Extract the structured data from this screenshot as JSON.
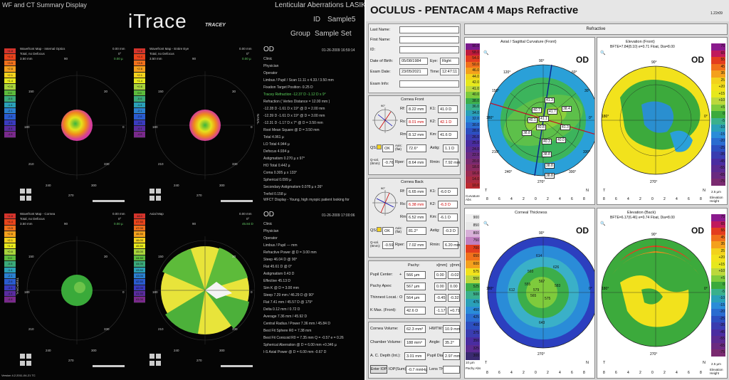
{
  "itrace": {
    "window_title": "WF and CT Summary Display",
    "logo": "iTrace",
    "logo_sub": "TRACEY",
    "header_right": "Lenticular Aberrations LASIK Pro",
    "id_label": "ID",
    "id_value": "Sample5",
    "group_label": "Group",
    "group_value": "Sample Set",
    "version": "Version 4.2.2011-04-21 TC",
    "scale_values": [
      "+4.8",
      "+4.4",
      "+3.5",
      "+2.6",
      "+2.1",
      "+1.4",
      "+0.6",
      "0.0",
      "-0.6",
      "-1.4",
      "-2.1",
      "-2.6",
      "-3.5",
      "-4.4",
      "-4.8"
    ],
    "map_scale_values": [
      "48.0",
      "47.50",
      "47.00",
      "46.50",
      "46.00",
      "45.50",
      "45.00",
      "44.50",
      "44.00",
      "43.50",
      "43.00",
      "42.50",
      "42.00",
      "41.50",
      "41.00"
    ],
    "maps": [
      {
        "title": "Wavefront Map - Internal Optics",
        "sub": "Total, no Defocus",
        "mm": "3.50 mm",
        "dist": "0.00 mm",
        "deg": "0°",
        "val": "0.00 µ",
        "a90": "90",
        "a150": "150",
        "a30": "30",
        "a180": "180",
        "a0": "0",
        "a210": "210",
        "a330": "330",
        "a240": "240",
        "a270": "270",
        "a300": "300"
      },
      {
        "title": "Wavefront Map - Entire Eye",
        "sub": "Total, no Defocus",
        "mm": "3.50 mm",
        "dist": "0.00 mm",
        "deg": "0°",
        "val": "0.00 µ",
        "a90": "90",
        "a150": "150",
        "a30": "30",
        "a180": "180",
        "a0": "0",
        "a210": "210",
        "a330": "330",
        "a240": "240",
        "a270": "270",
        "a300": "300"
      },
      {
        "title": "Wavefront Map - Cornea",
        "sub": "Total, no Defocus",
        "mm": "3.50 mm",
        "dist": "0.00 mm",
        "deg": "0°",
        "val": "0.00 µ",
        "a90": "90",
        "a150": "150",
        "a30": "30",
        "a180": "180",
        "a0": "0",
        "a210": "210",
        "a330": "330",
        "a240": "240",
        "a270": "270",
        "a300": "300"
      },
      {
        "title": "Axial Map",
        "sub": "",
        "mm": "",
        "dist": "0.00 mm",
        "deg": "0°",
        "val": "45.84 D",
        "a90": "90",
        "a150": "150",
        "a30": "30",
        "a180": "180",
        "a0": "0",
        "a210": "210",
        "a330": "330",
        "a240": "240",
        "a270": "270",
        "a300": "300"
      }
    ],
    "nasal": "NASAL",
    "temporal": "TEMPORAL",
    "info1": {
      "od": "OD",
      "date": "01-26-2009  16:59:14",
      "lines": [
        "Clinic",
        "Physician",
        "Operator",
        "Limbus / Pupil / Scan   11.11 x 4.33 / 3.50 mm",
        "Fixation Target Position   -9.25 D",
        "Tracey Refraction   -12.37 D  -1.12 D  x 9°",
        "Refraction ( Vertex Distance = 12.00 mm )",
        "-12.28 D   -1.61 D  x  19°  @ D = 2.00 mm",
        "-12.39 D   -1.61 D  x  19°  @ D = 3.00 mm",
        "-12.31 D   -1.17 D  x  7°  @ D = 3.50 mm",
        "Root Mean Square @ D = 3.50 mm",
        "Total   4.961 µ",
        "LO Total   4.944 µ",
        "Defocus   4.934 µ",
        "Astigmatism   0.270 µ  x  97°",
        "HO Total   0.442 µ",
        "Coma   0.305 µ  x  133°",
        "Spherical   0.099 µ",
        "Secondary Astigmatism   0.078 µ  x  26°",
        "Trefoil   0.158 µ"
      ],
      "footer": "WFCT Display - Young, high myopic patient looking for"
    },
    "info2": {
      "od": "OD",
      "date": "01-26-2009  17:00:06",
      "lines": [
        "Clinic",
        "Physician",
        "Operator",
        "Limbus / Pupil   --- mm",
        "Refractive Power @ D = 3.00 mm",
        "Steep   46.04 D  @  90°",
        "Flat   45.61 D  @  0°",
        "Astigmatism   0.43 D",
        "Effective   45.13 D",
        "Sim K @ D = 3.00 mm",
        "Steep   7.29 mm  /  46.29 D  @  90°",
        "Flat   7.41 mm  /  45.57 D  @  179°",
        "Delta   0.12 mm  /  0.72 D",
        "Average   7.36 mm  /  45.92 D",
        "Central Radius / Power   7.36 mm  /  45.84 D",
        "Best Fit Sphere   R0 = 7.38 mm",
        "Best Fit Conicoid   R0 = 7.35 mm  Q = -0.57  e = 0.26",
        "Spherical Aberration @ D = 6.00 mm   +0.346 µ",
        "I-S Axial Power @ D = 6.00 mm   -0.67 D"
      ]
    }
  },
  "pentacam": {
    "title": "OCULUS  -  PENTACAM   4 Maps Refractive",
    "version": "1.22r09",
    "refractive": "Refractive",
    "form": {
      "last_name": "Last Name:",
      "first_name": "First Name:",
      "id": "ID:",
      "dob_label": "Date of Birth:",
      "dob": "05/08/1984",
      "eye_label": "Eye:",
      "eye": "Right",
      "exam_date_label": "Exam Date:",
      "exam_date": "23/05/2021",
      "time_label": "Time:",
      "time": "12:47:11",
      "exam_info": "Exam Info:"
    },
    "front": {
      "title": "Cornea Front",
      "rf_l": "Rf:",
      "rf": "8.22 mm",
      "rs_l": "Rs:",
      "rs": "8.01 mm",
      "rm_l": "Rm:",
      "rm": "8.12 mm",
      "k1_l": "K1:",
      "k1": "41.0 D",
      "k2_l": "K2:",
      "k2": "42.1 D",
      "km_l": "Km:",
      "km": "41.6 D",
      "qs_l": "QS:",
      "qs": "OK",
      "axis_l": "Axis: (flat)",
      "axis": "72.6°",
      "astig_l": "Astig:",
      "astig": "1.1 D",
      "qval_l": "Q-val. (8mm):",
      "qval": "-0.76",
      "rper_l": "Rper:",
      "rper": "8.64 mm",
      "rmin_l": "Rmin:",
      "rmin": "7.92 mm"
    },
    "back": {
      "title": "Cornea Back",
      "rf_l": "Rf:",
      "rf": "6.65 mm",
      "rs_l": "Rs:",
      "rs": "6.38 mm",
      "rm_l": "Rm:",
      "rm": "6.52 mm",
      "k1_l": "K1:",
      "k1": "-6.0 D",
      "k2_l": "K2:",
      "k2": "-6.3 D",
      "km_l": "Km:",
      "km": "-6.1 D",
      "qs_l": "QS:",
      "qs": "OK",
      "axis_l": "Axis: (flat)",
      "axis": "81.2°",
      "astig_l": "Astig:",
      "astig": "-0.3 D",
      "qval_l": "Q-val. (8mm):",
      "qval": "-0.59",
      "rper_l": "Rper:",
      "rper": "7.02 mm",
      "rmin_l": "Rmin:",
      "rmin": "6.20 mm"
    },
    "pachy": {
      "h_pachy": "Pachy:",
      "h_x": "x[mm]",
      "h_y": "y[mm]",
      "pc_l": "Pupil Center:",
      "pc_sym": "+",
      "pc": "566 µm",
      "pc_x": "0.00",
      "pc_y": "-0.02",
      "pa_l": "Pachy Apex:",
      "pa": "567 µm",
      "pa_x": "0.00",
      "pa_y": "0.00",
      "tl_l": "Thinnest Locat.:",
      "tl_sym": "O",
      "tl": "564 µm",
      "tl_x": "-0.45",
      "tl_y": "-0.32",
      "km_l": "K Max. (Front):",
      "km": "42.6 D",
      "km_x": "-1.17",
      "km_y": "+0.71"
    },
    "vol": {
      "cv_l": "Cornea Volume:",
      "cv": "62.3 mm³",
      "hw_l": "HWTW:",
      "hw": "10.9 mm",
      "ch_l": "Chamber Volume:",
      "ch": "188 mm³",
      "ang_l": "Angle:",
      "ang": "35.2°",
      "acd_l": "A. C. Depth (Int.):",
      "acd": "3.01 mm",
      "pd_l": "Pupil Dia:",
      "pd": "2.97 mm",
      "iop_btn": "Enter IOP",
      "iop_l": "IOP(Sum):",
      "iop": "-0.7 mmHg",
      "lt_l": "Lens Th.:",
      "lt": ""
    },
    "maps": [
      {
        "title": "Axial / Sagittal Curvature (Front)",
        "od": "OD",
        "t": "T",
        "n": "N",
        "unit": "Curvature Abs",
        "scale": [
          "90.0",
          "58.0",
          "54.0",
          "50.0",
          "46.0",
          "44.0",
          "42.0",
          "41.0",
          "40.0",
          "38.0",
          "36.0",
          "34.0",
          "32.0",
          "30.0",
          "28.0",
          "26.0",
          "25.0",
          "24.0",
          "22.0",
          "20.0",
          "18.0",
          "16.0",
          "14.0",
          "10.0"
        ],
        "labels": [
          "41.3",
          "40.7",
          "41.7",
          "41.1",
          "38.4",
          "40.1",
          "40.8",
          "38.8",
          "41.3",
          "40.3",
          "40.0",
          "38.8",
          "38.8",
          "38.8"
        ]
      },
      {
        "title": "Elevation (Front)",
        "sub": "BFTE=7.84(8.10) e=0.71 Float, Dia=8.00",
        "od": "OD",
        "t": "T",
        "n": "N",
        "unit": "Elevation Height",
        "scale": [
          "75",
          "65",
          "55",
          "45",
          "35",
          "25",
          "+20",
          "+15",
          "+10",
          "+5",
          "0",
          "-5",
          "-10",
          "-15",
          "-20",
          "-25",
          "-35",
          "-45",
          "-55",
          "-65",
          "-75"
        ],
        "res": "2.5 µm"
      },
      {
        "title": "Corneal Thickness",
        "od": "OD",
        "t": "T",
        "n": "N",
        "unit": "Pachy Abs",
        "scale": [
          "900",
          "850",
          "800",
          "750",
          "700",
          "650",
          "600",
          "575",
          "550",
          "525",
          "500",
          "475",
          "450",
          "425",
          "400",
          "375",
          "350",
          "325",
          "300"
        ],
        "res": "10 µm",
        "labels": [
          "579",
          "555",
          "567",
          "565",
          "575",
          "593",
          "583",
          "612",
          "626",
          "614",
          "643"
        ]
      },
      {
        "title": "Elevation (Back)",
        "sub": "BFTE=6.17(6.46) e=0.74 Float, Dia=8.00",
        "od": "OD",
        "t": "T",
        "n": "N",
        "unit": "Elevation Height",
        "scale": [
          "75",
          "65",
          "55",
          "45",
          "35",
          "25",
          "+20",
          "+15",
          "+10",
          "+5",
          "0",
          "-5",
          "-10",
          "-15",
          "-20",
          "-25",
          "-35",
          "-45",
          "-55",
          "-65",
          "-75"
        ],
        "res": "2.5 µm"
      }
    ],
    "axis_ticks": [
      "8",
      "6",
      "4",
      "2",
      "0",
      "2",
      "4",
      "6",
      "8"
    ],
    "deg90": "90°",
    "deg270": "270°",
    "deg180": "180°",
    "deg0": "0°",
    "deg120": "120°",
    "deg60": "60°",
    "deg150": "150°",
    "deg30": "30°",
    "deg210": "210°",
    "deg330": "330°",
    "deg240": "240°",
    "deg300": "300°",
    "colors": {
      "blue": "#1b6fd0",
      "green": "#3cab3c",
      "yellow": "#f2e21c",
      "red": "#e33d1f"
    }
  }
}
